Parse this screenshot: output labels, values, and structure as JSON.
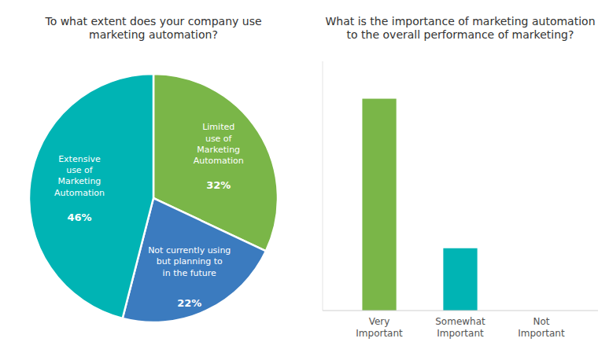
{
  "chart_data": [
    {
      "type": "pie",
      "title": "To what extent does your company use\nmarketing automation?",
      "categories": [
        "Limited\nuse of\nMarketing\nAutomation",
        "Not currently using\nbut planning to\nin the future",
        "Extensive\nuse of\nMarketing\nAutomation"
      ],
      "values": [
        32,
        22,
        46
      ],
      "value_labels": [
        "32%",
        "22%",
        "46%"
      ],
      "colors": [
        "#7ab648",
        "#3b7bbf",
        "#00b4b4"
      ],
      "data_labels": true
    },
    {
      "type": "bar",
      "title": "What is the importance of marketing automation\nto the overall performance of marketing?",
      "categories": [
        "Very\nImportant",
        "Somewhat\nImportant",
        "Not\nImportant"
      ],
      "values": [
        85,
        25,
        0
      ],
      "colors": [
        "#7ab648",
        "#00b4b4",
        "#7ab648"
      ],
      "ylim": [
        0,
        100
      ],
      "grid": false,
      "tick_labels": "x"
    }
  ]
}
